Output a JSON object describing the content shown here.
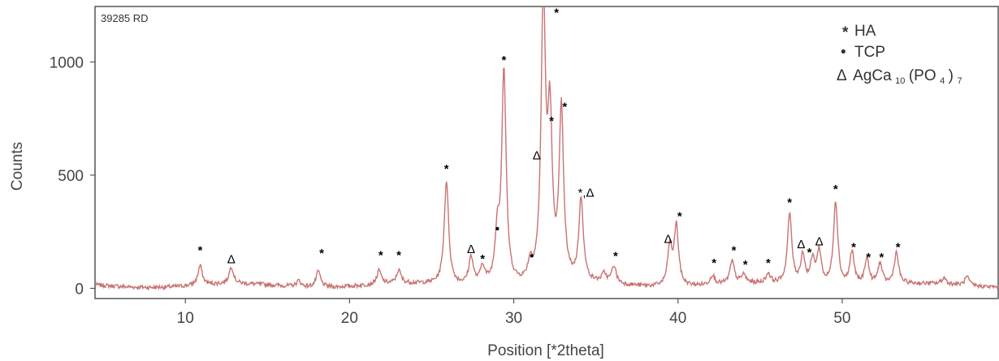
{
  "chart_data": {
    "type": "line",
    "sample_label": "39285 RD",
    "xlabel": "Position [*2theta]",
    "ylabel": "Counts",
    "xlim": [
      4.5,
      59.5
    ],
    "ylim": [
      -45,
      1245
    ],
    "x_ticks": [
      "10",
      "20",
      "30",
      "40",
      "50"
    ],
    "y_ticks": [
      "0",
      "500",
      "1000"
    ],
    "series": [
      {
        "color": "#c97373",
        "peaks": [
          {
            "x": 10.9,
            "y": 98
          },
          {
            "x": 12.8,
            "y": 88
          },
          {
            "x": 16.9,
            "y": 38
          },
          {
            "x": 18.1,
            "y": 82
          },
          {
            "x": 21.8,
            "y": 72
          },
          {
            "x": 23.0,
            "y": 70
          },
          {
            "x": 25.9,
            "y": 470
          },
          {
            "x": 27.4,
            "y": 135
          },
          {
            "x": 28.1,
            "y": 90
          },
          {
            "x": 29.0,
            "y": 220
          },
          {
            "x": 29.4,
            "y": 950
          },
          {
            "x": 31.0,
            "y": 85
          },
          {
            "x": 31.8,
            "y": 1240
          },
          {
            "x": 32.2,
            "y": 690
          },
          {
            "x": 32.9,
            "y": 760
          },
          {
            "x": 34.1,
            "y": 375
          },
          {
            "x": 35.5,
            "y": 50
          },
          {
            "x": 36.1,
            "y": 90
          },
          {
            "x": 39.5,
            "y": 180
          },
          {
            "x": 39.9,
            "y": 275
          },
          {
            "x": 42.1,
            "y": 55
          },
          {
            "x": 43.3,
            "y": 110
          },
          {
            "x": 44.0,
            "y": 50
          },
          {
            "x": 45.5,
            "y": 55
          },
          {
            "x": 46.8,
            "y": 320
          },
          {
            "x": 47.6,
            "y": 140
          },
          {
            "x": 48.2,
            "y": 115
          },
          {
            "x": 48.6,
            "y": 160
          },
          {
            "x": 49.6,
            "y": 385
          },
          {
            "x": 50.6,
            "y": 160
          },
          {
            "x": 51.5,
            "y": 130
          },
          {
            "x": 52.3,
            "y": 105
          },
          {
            "x": 53.3,
            "y": 150
          },
          {
            "x": 56.2,
            "y": 40
          },
          {
            "x": 57.6,
            "y": 50
          }
        ]
      }
    ],
    "annotations": [
      {
        "x": 10.9,
        "y": 150,
        "label": "*"
      },
      {
        "x": 12.8,
        "y": 110,
        "label": "Δ"
      },
      {
        "x": 18.3,
        "y": 138,
        "label": "*"
      },
      {
        "x": 21.9,
        "y": 128,
        "label": "*"
      },
      {
        "x": 23.0,
        "y": 128,
        "label": "*"
      },
      {
        "x": 25.9,
        "y": 510,
        "label": "*"
      },
      {
        "x": 27.4,
        "y": 155,
        "label": "Δ"
      },
      {
        "x": 28.1,
        "y": 112,
        "label": "*"
      },
      {
        "x": 29.0,
        "y": 245,
        "label": "•"
      },
      {
        "x": 29.4,
        "y": 990,
        "label": "*"
      },
      {
        "x": 31.1,
        "y": 125,
        "label": "•"
      },
      {
        "x": 31.4,
        "y": 570,
        "label": "Δ"
      },
      {
        "x": 32.6,
        "y": 1200,
        "label": "*"
      },
      {
        "x": 32.3,
        "y": 722,
        "label": "*"
      },
      {
        "x": 33.1,
        "y": 785,
        "label": "*"
      },
      {
        "x": 34.4,
        "y": 405,
        "label": "*,Δ"
      },
      {
        "x": 36.2,
        "y": 125,
        "label": "*"
      },
      {
        "x": 39.4,
        "y": 200,
        "label": "Δ"
      },
      {
        "x": 40.1,
        "y": 300,
        "label": "*"
      },
      {
        "x": 42.2,
        "y": 95,
        "label": "*"
      },
      {
        "x": 43.4,
        "y": 150,
        "label": "*"
      },
      {
        "x": 44.1,
        "y": 88,
        "label": "*"
      },
      {
        "x": 45.5,
        "y": 95,
        "label": "*"
      },
      {
        "x": 46.8,
        "y": 362,
        "label": "*"
      },
      {
        "x": 47.5,
        "y": 178,
        "label": "Δ"
      },
      {
        "x": 48.0,
        "y": 142,
        "label": "*"
      },
      {
        "x": 48.6,
        "y": 190,
        "label": "Δ"
      },
      {
        "x": 49.6,
        "y": 420,
        "label": "*"
      },
      {
        "x": 50.7,
        "y": 165,
        "label": "*"
      },
      {
        "x": 51.6,
        "y": 120,
        "label": "*"
      },
      {
        "x": 52.4,
        "y": 120,
        "label": "*"
      },
      {
        "x": 53.4,
        "y": 165,
        "label": "*"
      }
    ],
    "legend": {
      "position": "top-right",
      "entries": [
        {
          "symbol": "*",
          "label": "HA"
        },
        {
          "symbol": "•",
          "label": "TCP"
        },
        {
          "symbol": "Δ",
          "label": "AgCa",
          "sub1": "10",
          "mid": "(PO",
          "sub2": "4",
          "end": ")",
          "sub3": "7"
        }
      ]
    },
    "grid": false
  }
}
